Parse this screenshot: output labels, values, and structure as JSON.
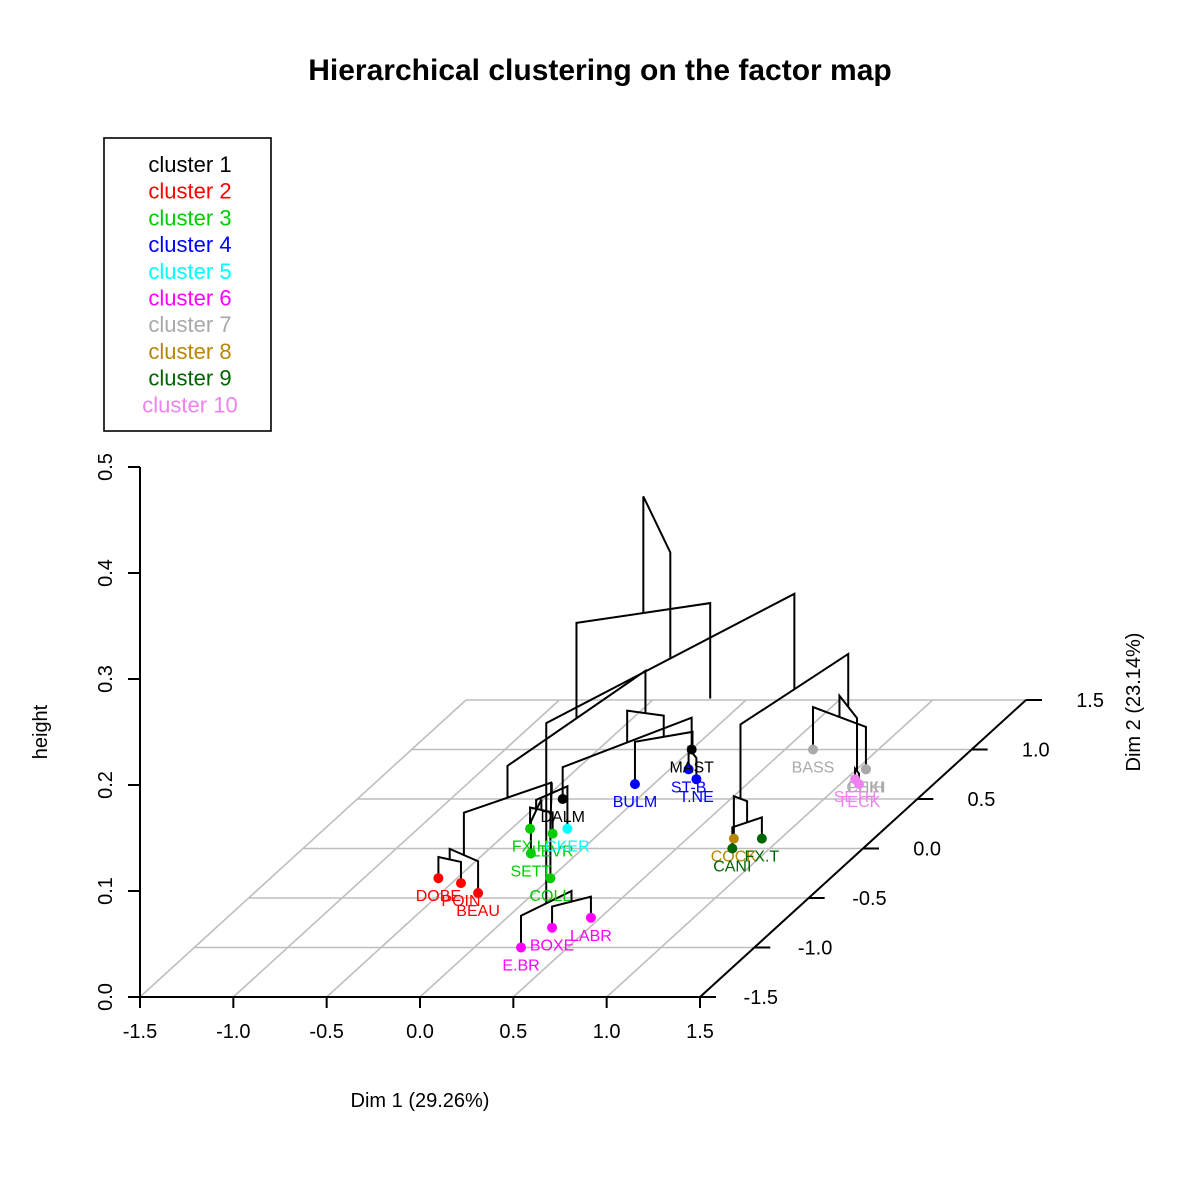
{
  "chart_data": {
    "type": "scatter",
    "title": "Hierarchical clustering on the factor map",
    "xlabel": "Dim 1 (29.26%)",
    "ylabel": "Dim 2 (23.14%)",
    "zlabel": "height",
    "xlim": [
      -1.5,
      1.5
    ],
    "ylim": [
      -1.5,
      1.5
    ],
    "zlim": [
      0,
      0.5
    ],
    "x_ticks": [
      "-1.5",
      "-1.0",
      "-0.5",
      "0.0",
      "0.5",
      "1.0",
      "1.5"
    ],
    "y_ticks": [
      "-1.5",
      "-1.0",
      "-0.5",
      "0.0",
      "0.5",
      "1.0",
      "1.5"
    ],
    "z_ticks": [
      "0.0",
      "0.1",
      "0.2",
      "0.3",
      "0.4",
      "0.5"
    ],
    "grid": true,
    "legend_position": "top-left",
    "clusters": [
      {
        "name": "cluster 1",
        "color": "#000000"
      },
      {
        "name": "cluster 2",
        "color": "#ff0000"
      },
      {
        "name": "cluster 3",
        "color": "#00cd00"
      },
      {
        "name": "cluster 4",
        "color": "#0000ff"
      },
      {
        "name": "cluster 5",
        "color": "#00ffff"
      },
      {
        "name": "cluster 6",
        "color": "#ff00ff"
      },
      {
        "name": "cluster 7",
        "color": "#a9a9a9"
      },
      {
        "name": "cluster 8",
        "color": "#b8860b"
      },
      {
        "name": "cluster 9",
        "color": "#006400"
      },
      {
        "name": "cluster 10",
        "color": "#ee82ee"
      }
    ],
    "points": [
      {
        "label": "DOBE",
        "cluster": 2,
        "x": -0.6,
        "y": -0.3
      },
      {
        "label": "POIN",
        "cluster": 2,
        "x": -0.45,
        "y": -0.35
      },
      {
        "label": "BEAU",
        "cluster": 2,
        "x": -0.3,
        "y": -0.45
      },
      {
        "label": "SETT",
        "cluster": 3,
        "x": -0.25,
        "y": -0.05
      },
      {
        "label": "FX.H",
        "cluster": 3,
        "x": -0.4,
        "y": 0.2
      },
      {
        "label": "LEVR",
        "cluster": 3,
        "x": -0.25,
        "y": 0.15
      },
      {
        "label": "COLL",
        "cluster": 3,
        "x": 0.0,
        "y": -0.3
      },
      {
        "label": "BULM",
        "cluster": 4,
        "x": -0.1,
        "y": 0.65
      },
      {
        "label": "ST-B",
        "cluster": 4,
        "x": 0.1,
        "y": 0.8
      },
      {
        "label": "T.NE",
        "cluster": 4,
        "x": 0.2,
        "y": 0.7
      },
      {
        "label": "DALM",
        "cluster": 1,
        "x": -0.4,
        "y": 0.5
      },
      {
        "label": "MAST",
        "cluster": 1,
        "x": 0.0,
        "y": 1.0
      },
      {
        "label": "CKER",
        "cluster": 5,
        "x": -0.2,
        "y": 0.2
      },
      {
        "label": "BOXE",
        "cluster": 6,
        "x": 0.3,
        "y": -0.8
      },
      {
        "label": "LABR",
        "cluster": 6,
        "x": 0.45,
        "y": -0.7
      },
      {
        "label": "E.BR",
        "cluster": 6,
        "x": 0.25,
        "y": -1.0
      },
      {
        "label": "BASS",
        "cluster": 7,
        "x": 0.65,
        "y": 1.0
      },
      {
        "label": "CHIH",
        "cluster": 7,
        "x": 1.05,
        "y": 0.8
      },
      {
        "label": "PEKI",
        "cluster": 7,
        "x": 1.05,
        "y": 0.8
      },
      {
        "label": "COCK",
        "cluster": 8,
        "x": 0.75,
        "y": 0.1
      },
      {
        "label": "FX.T",
        "cluster": 9,
        "x": 0.9,
        "y": 0.1
      },
      {
        "label": "CANI",
        "cluster": 9,
        "x": 0.8,
        "y": 0.0
      },
      {
        "label": "TECK",
        "cluster": 10,
        "x": 1.1,
        "y": 0.65
      },
      {
        "label": "SETH",
        "cluster": 10,
        "x": 1.05,
        "y": 0.7
      }
    ]
  }
}
